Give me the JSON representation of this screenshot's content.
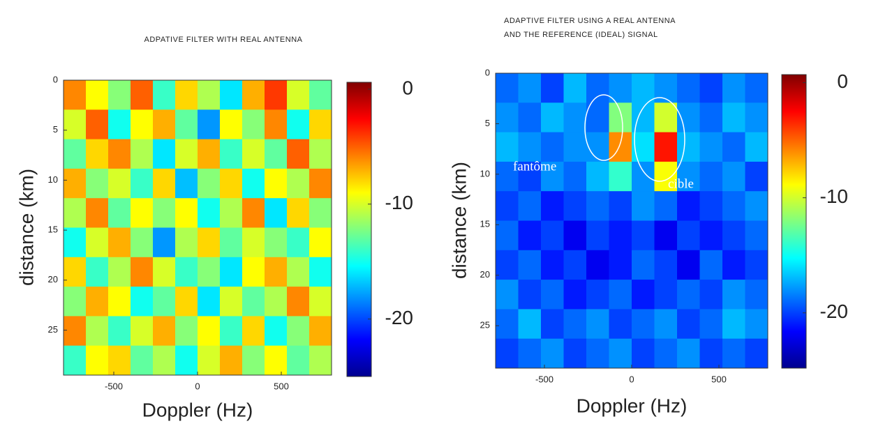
{
  "chart_data": [
    {
      "type": "heatmap",
      "title": [
        "ADPATIVE FILTER WITH REAL ANTENNA"
      ],
      "xlabel": "Doppler (Hz)",
      "ylabel": "distance (km)",
      "xlim": [
        -800,
        800
      ],
      "ylim": [
        0,
        29.5
      ],
      "y_inverted": true,
      "xticks": [
        -500,
        0,
        500
      ],
      "yticks": [
        0,
        5,
        10,
        15,
        20,
        25
      ],
      "colormap": "jet",
      "colorbar": {
        "clim": [
          -25,
          0.6
        ],
        "ticks": [
          0,
          -10,
          -20
        ]
      },
      "z": [
        [
          -6,
          -9,
          -12,
          -5,
          -14,
          -8,
          -11,
          -16,
          -7,
          -4,
          -10,
          -13
        ],
        [
          -10,
          -5,
          -15,
          -9,
          -7,
          -13,
          -18,
          -9,
          -12,
          -6,
          -15,
          -8
        ],
        [
          -13,
          -8,
          -6,
          -11,
          -16,
          -10,
          -7,
          -14,
          -10,
          -13,
          -5,
          -11
        ],
        [
          -7,
          -12,
          -10,
          -14,
          -8,
          -17,
          -12,
          -8,
          -15,
          -9,
          -11,
          -6
        ],
        [
          -11,
          -6,
          -13,
          -9,
          -12,
          -9,
          -15,
          -11,
          -6,
          -16,
          -8,
          -12
        ],
        [
          -15,
          -10,
          -7,
          -12,
          -18,
          -11,
          -8,
          -13,
          -10,
          -12,
          -14,
          -9
        ],
        [
          -8,
          -14,
          -11,
          -6,
          -10,
          -14,
          -12,
          -16,
          -9,
          -7,
          -11,
          -15
        ],
        [
          -12,
          -7,
          -9,
          -15,
          -13,
          -8,
          -16,
          -10,
          -13,
          -11,
          -6,
          -10
        ],
        [
          -6,
          -11,
          -14,
          -10,
          -7,
          -12,
          -9,
          -14,
          -8,
          -15,
          -12,
          -7
        ],
        [
          -14,
          -9,
          -8,
          -13,
          -11,
          -15,
          -10,
          -7,
          -12,
          -9,
          -13,
          -11
        ]
      ]
    },
    {
      "type": "heatmap",
      "title": [
        "ADAPTIVE FILTER USING A REAL ANTENNA",
        "AND THE REFERENCE (IDEAL) SIGNAL"
      ],
      "xlabel": "Doppler (Hz)",
      "ylabel": "distance (km)",
      "xlim": [
        -780,
        780
      ],
      "ylim": [
        0,
        29.2
      ],
      "y_inverted": true,
      "xticks": [
        -500,
        0,
        500
      ],
      "yticks": [
        0,
        5,
        10,
        15,
        20,
        25
      ],
      "colormap": "jet",
      "colorbar": {
        "clim": [
          -24.8,
          0.7
        ],
        "ticks": [
          0,
          -10,
          -20
        ]
      },
      "annotations": [
        "fantôme",
        "cible"
      ],
      "z": [
        [
          -19,
          -18,
          -20,
          -17,
          -19,
          -18,
          -17,
          -18,
          -19,
          -20,
          -18,
          -19
        ],
        [
          -18,
          -19,
          -17,
          -18,
          -19,
          -12,
          -17,
          -10,
          -18,
          -19,
          -17,
          -18
        ],
        [
          -17,
          -18,
          -19,
          -18,
          -18,
          -6,
          -16,
          -3,
          -17,
          -18,
          -19,
          -17
        ],
        [
          -19,
          -20,
          -18,
          -19,
          -17,
          -14,
          -18,
          -9,
          -18,
          -19,
          -18,
          -20
        ],
        [
          -20,
          -19,
          -21,
          -20,
          -19,
          -20,
          -18,
          -19,
          -21,
          -20,
          -19,
          -18
        ],
        [
          -19,
          -21,
          -20,
          -22,
          -20,
          -21,
          -20,
          -22,
          -20,
          -21,
          -20,
          -19
        ],
        [
          -20,
          -19,
          -21,
          -20,
          -22,
          -21,
          -19,
          -20,
          -22,
          -19,
          -21,
          -20
        ],
        [
          -18,
          -20,
          -19,
          -21,
          -20,
          -19,
          -21,
          -20,
          -19,
          -20,
          -18,
          -19
        ],
        [
          -19,
          -17,
          -20,
          -19,
          -18,
          -20,
          -19,
          -18,
          -20,
          -19,
          -17,
          -18
        ],
        [
          -20,
          -19,
          -18,
          -20,
          -19,
          -18,
          -20,
          -19,
          -18,
          -20,
          -19,
          -20
        ]
      ]
    }
  ]
}
